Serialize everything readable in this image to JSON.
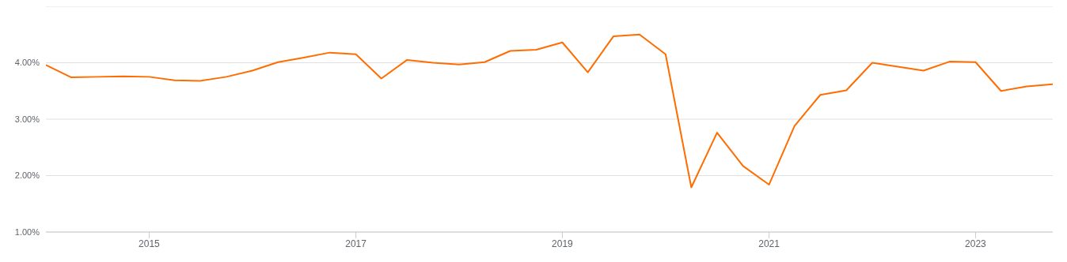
{
  "chart_data": {
    "type": "line",
    "x": [
      "2014-01",
      "2014-04",
      "2014-07",
      "2014-10",
      "2015-01",
      "2015-04",
      "2015-07",
      "2015-10",
      "2016-01",
      "2016-04",
      "2016-07",
      "2016-10",
      "2017-01",
      "2017-04",
      "2017-07",
      "2017-10",
      "2018-01",
      "2018-04",
      "2018-07",
      "2018-10",
      "2019-01",
      "2019-04",
      "2019-07",
      "2019-10",
      "2020-01",
      "2020-04",
      "2020-07",
      "2020-10",
      "2021-01",
      "2021-04",
      "2021-07",
      "2021-10",
      "2022-01",
      "2022-04",
      "2022-07",
      "2022-10",
      "2023-01",
      "2023-04",
      "2023-07",
      "2023-10"
    ],
    "series": [
      {
        "color": "#ff6d00",
        "values": [
          3.96,
          3.74,
          3.75,
          3.76,
          3.75,
          3.69,
          3.68,
          3.75,
          3.86,
          4.01,
          4.09,
          4.18,
          4.15,
          3.72,
          4.05,
          4.0,
          3.97,
          4.01,
          4.21,
          4.23,
          4.36,
          3.83,
          4.47,
          4.5,
          4.15,
          1.79,
          2.76,
          2.17,
          1.84,
          2.88,
          3.43,
          3.51,
          4.0,
          3.93,
          3.86,
          4.02,
          4.01,
          3.5,
          3.58,
          3.62
        ]
      }
    ],
    "xlim": [
      "2014-01",
      "2023-10"
    ],
    "xticks": [
      "2015",
      "2017",
      "2019",
      "2021",
      "2023"
    ],
    "ylim": [
      1,
      5
    ],
    "yticks": [
      {
        "value": 1,
        "label": "1.00%"
      },
      {
        "value": 2,
        "label": "2.00%"
      },
      {
        "value": 3,
        "label": "3.00%"
      },
      {
        "value": 4,
        "label": "4.00%"
      },
      {
        "value": 5,
        "label": null
      }
    ],
    "grid": "y",
    "legend": false,
    "marker": "none",
    "line_style": "solid"
  }
}
